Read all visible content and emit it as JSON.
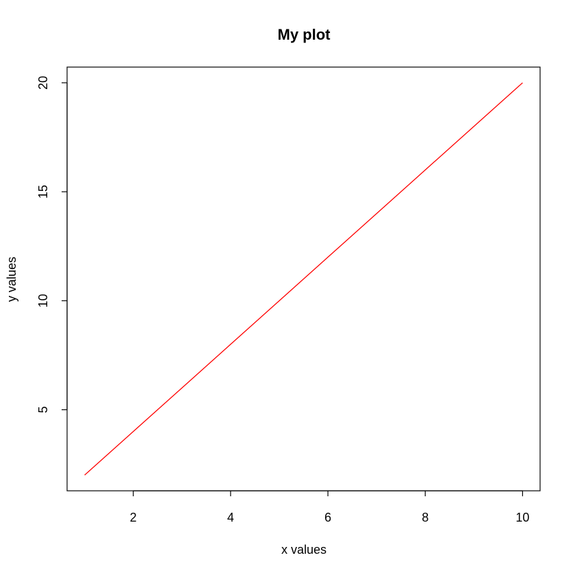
{
  "chart_data": {
    "type": "line",
    "title": "My plot",
    "xlabel": "x values",
    "ylabel": "y values",
    "xlim": [
      0.64,
      10.36
    ],
    "ylim": [
      1.28,
      20.72
    ],
    "xticks": [
      2,
      4,
      6,
      8,
      10
    ],
    "yticks": [
      5,
      10,
      15,
      20
    ],
    "x": [
      1,
      2,
      3,
      4,
      5,
      6,
      7,
      8,
      9,
      10
    ],
    "series": [
      {
        "values": [
          2,
          4,
          6,
          8,
          10,
          12,
          14,
          16,
          18,
          20
        ],
        "color": "#ff0000"
      }
    ],
    "grid": false,
    "legend": "none"
  }
}
